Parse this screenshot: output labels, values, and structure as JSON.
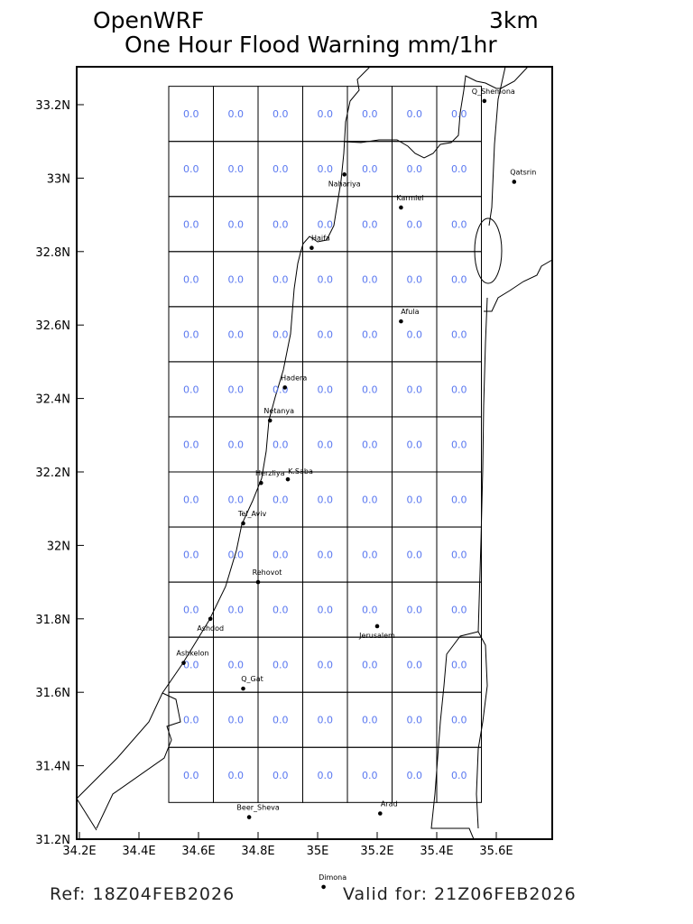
{
  "header": {
    "model": "OpenWRF",
    "resolution": "3km",
    "title": "One Hour Flood Warning mm/1hr"
  },
  "footer": {
    "ref": "Ref: 18Z04FEB2026",
    "valid": "Valid for: 21Z06FEB2026"
  },
  "chart_data": {
    "type": "heatmap",
    "title": "One Hour Flood Warning mm/1hr",
    "units": "mm/1hr",
    "xlim": [
      34.2,
      35.79
    ],
    "ylim": [
      31.2,
      33.3
    ],
    "x_ticks": [
      "34.2E",
      "34.4E",
      "34.6E",
      "34.8E",
      "35E",
      "35.2E",
      "35.4E",
      "35.6E"
    ],
    "x_tick_values": [
      34.2,
      34.4,
      34.6,
      34.8,
      35.0,
      35.2,
      35.4,
      35.6
    ],
    "y_ticks": [
      "33.2N",
      "33N",
      "32.8N",
      "32.6N",
      "32.4N",
      "32.2N",
      "32N",
      "31.8N",
      "31.6N",
      "31.4N",
      "31.2N"
    ],
    "y_tick_values": [
      33.2,
      33.0,
      32.8,
      32.6,
      32.4,
      32.2,
      32.0,
      31.8,
      31.6,
      31.4,
      31.2
    ],
    "grid": {
      "lon_start": 34.5,
      "lat_top": 33.25,
      "step_deg": 0.15,
      "cols": 7,
      "rows": 13
    },
    "values": [
      [
        "0.0",
        "0.0",
        "0.0",
        "0.0",
        "0.0",
        "0.0",
        "0.0"
      ],
      [
        "0.0",
        "0.0",
        "0.0",
        "0.0",
        "0.0",
        "0.0",
        "0.0"
      ],
      [
        "0.0",
        "0.0",
        "0.0",
        "0.0",
        "0.0",
        "0.0",
        "0.0"
      ],
      [
        "0.0",
        "0.0",
        "0.0",
        "0.0",
        "0.0",
        "0.0",
        "0.0"
      ],
      [
        "0.0",
        "0.0",
        "0.0",
        "0.0",
        "0.0",
        "0.0",
        "0.0"
      ],
      [
        "0.0",
        "0.0",
        "0.0",
        "0.0",
        "0.0",
        "0.0",
        "0.0"
      ],
      [
        "0.0",
        "0.0",
        "0.0",
        "0.0",
        "0.0",
        "0.0",
        "0.0"
      ],
      [
        "0.0",
        "0.0",
        "0.0",
        "0.0",
        "0.0",
        "0.0",
        "0.0"
      ],
      [
        "0.0",
        "0.0",
        "0.0",
        "0.0",
        "0.0",
        "0.0",
        "0.0"
      ],
      [
        "0.0",
        "0.0",
        "0.0",
        "0.0",
        "0.0",
        "0.0",
        "0.0"
      ],
      [
        "0.0",
        "0.0",
        "0.0",
        "0.0",
        "0.0",
        "0.0",
        "0.0"
      ],
      [
        "0.0",
        "0.0",
        "0.0",
        "0.0",
        "0.0",
        "0.0",
        "0.0"
      ],
      [
        "0.0",
        "0.0",
        "0.0",
        "0.0",
        "0.0",
        "0.0",
        "0.0"
      ]
    ],
    "value_color": "#5a78f0",
    "cities": [
      {
        "name": "Q_Shemona",
        "lon": 35.56,
        "lat": 33.21
      },
      {
        "name": "Qatsrin",
        "lon": 35.66,
        "lat": 32.99
      },
      {
        "name": "Nahariya",
        "lon": 35.09,
        "lat": 33.01
      },
      {
        "name": "Karmiel",
        "lon": 35.28,
        "lat": 32.92
      },
      {
        "name": "Haifa",
        "lon": 34.98,
        "lat": 32.81
      },
      {
        "name": "Afula",
        "lon": 35.28,
        "lat": 32.61
      },
      {
        "name": "Hadera",
        "lon": 34.89,
        "lat": 32.43
      },
      {
        "name": "Netanya",
        "lon": 34.84,
        "lat": 32.34
      },
      {
        "name": "Herzliya",
        "lon": 34.81,
        "lat": 32.17
      },
      {
        "name": "K.Saba",
        "lon": 34.9,
        "lat": 32.18
      },
      {
        "name": "Tel_Aviv",
        "lon": 34.75,
        "lat": 32.06
      },
      {
        "name": "Rehovot",
        "lon": 34.8,
        "lat": 31.9
      },
      {
        "name": "Ashdod",
        "lon": 34.64,
        "lat": 31.8
      },
      {
        "name": "Jerusalem",
        "lon": 35.2,
        "lat": 31.78
      },
      {
        "name": "Ashkelon",
        "lon": 34.55,
        "lat": 31.68
      },
      {
        "name": "Q_Gat",
        "lon": 34.75,
        "lat": 31.61
      },
      {
        "name": "Beer_Sheva",
        "lon": 34.77,
        "lat": 31.26
      },
      {
        "name": "Arad",
        "lon": 35.21,
        "lat": 31.27
      },
      {
        "name": "Dimona",
        "lon": 35.02,
        "lat": 31.07
      }
    ]
  }
}
